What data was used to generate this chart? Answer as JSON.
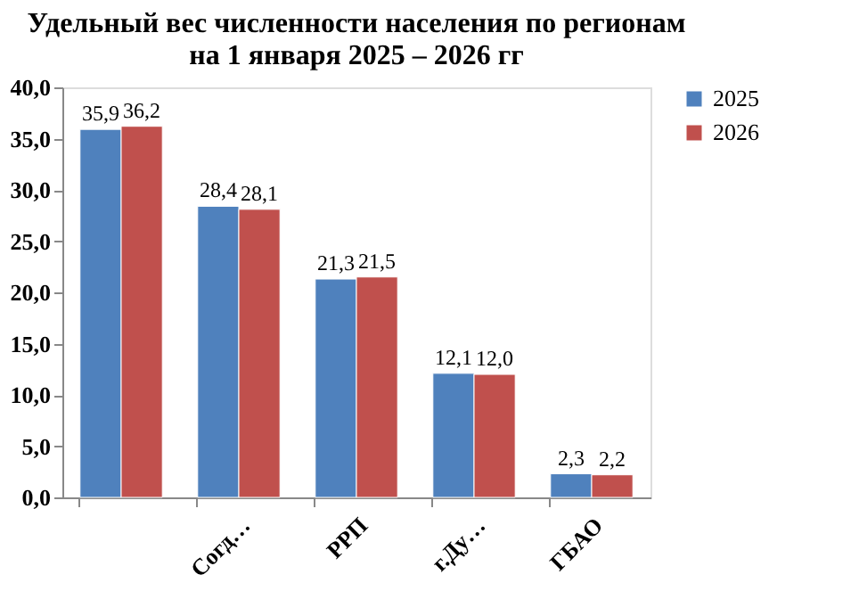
{
  "chart_data": {
    "type": "bar",
    "title": [
      "Удельный вес численности населения по регионам",
      "на 1 января 2025 – 2026 гг"
    ],
    "categories": [
      null,
      "Согд…",
      "РРП",
      "г.Ду…",
      "ГБАО"
    ],
    "series": [
      {
        "name": "2025",
        "color": "#4f81bd",
        "values": [
          35.9,
          28.4,
          21.3,
          12.1,
          2.3
        ],
        "value_labels": [
          "35,9",
          "28,4",
          "21,3",
          "12,1",
          "2,3"
        ]
      },
      {
        "name": "2026",
        "color": "#c0504d",
        "values": [
          36.2,
          28.1,
          21.5,
          12.0,
          2.2
        ],
        "value_labels": [
          "36,2",
          "28,1",
          "21,5",
          "12,0",
          "2,2"
        ]
      }
    ],
    "ylim": [
      0,
      40
    ],
    "yticks": [
      {
        "value": 0,
        "label": "0,0"
      },
      {
        "value": 5,
        "label": "5,0"
      },
      {
        "value": 10,
        "label": "10,0"
      },
      {
        "value": 15,
        "label": "15,0"
      },
      {
        "value": 20,
        "label": "20,0"
      },
      {
        "value": 25,
        "label": "25,0"
      },
      {
        "value": 30,
        "label": "30,0"
      },
      {
        "value": 35,
        "label": "35,0"
      },
      {
        "value": 40,
        "label": "40,0"
      }
    ],
    "grid": false,
    "legend": "right"
  }
}
